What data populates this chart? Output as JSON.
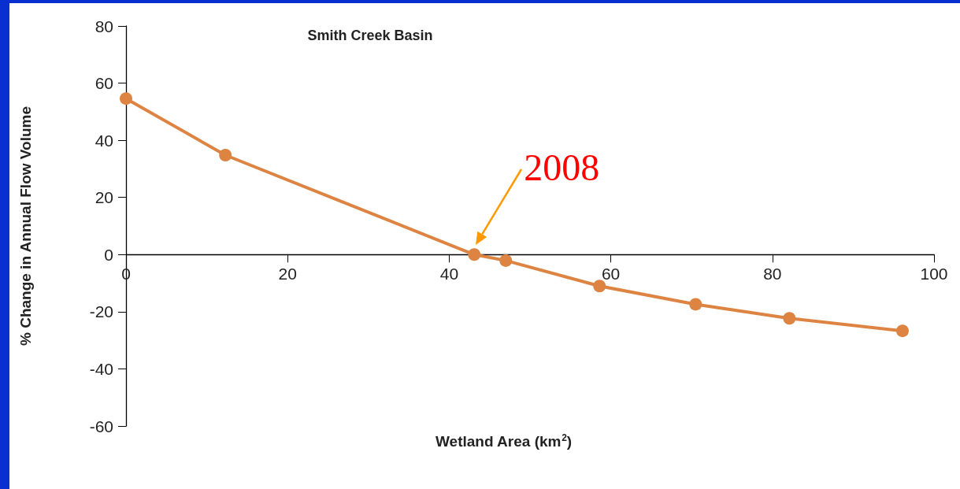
{
  "chart_data": {
    "type": "line",
    "title": "Smith Creek Basin",
    "xlabel": "Wetland Area (km$^{2}$)",
    "ylabel": "% Change in Annual Flow Volume",
    "x": [
      0,
      12.3,
      43.1,
      47.0,
      58.6,
      70.5,
      82.1,
      96.1
    ],
    "series": [
      {
        "color": "#dd8442",
        "values": [
          54.6,
          34.8,
          0,
          -2.1,
          -11,
          -17.4,
          -22.3,
          -26.7
        ]
      }
    ],
    "xlim": [
      0,
      100
    ],
    "xticks": [
      0,
      20,
      40,
      60,
      80,
      100
    ],
    "ylim": [
      -60,
      80
    ],
    "yticks": [
      -60,
      -40,
      -20,
      0,
      20,
      40,
      60,
      80
    ],
    "annotations": [
      {
        "text": "2008",
        "x": 43.1,
        "y": 0
      }
    ],
    "grid": false,
    "marker": "circle",
    "line_style": "solid"
  }
}
